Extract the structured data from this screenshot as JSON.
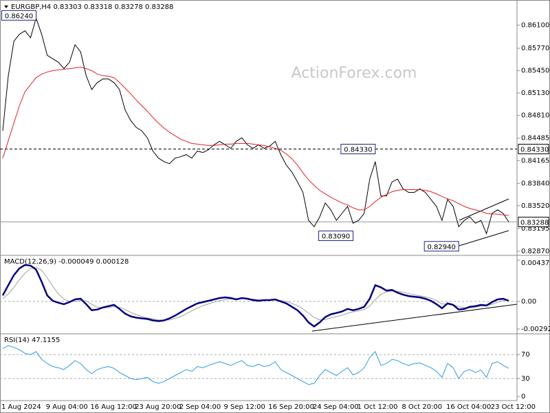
{
  "chart_data": [
    {
      "type": "line",
      "title": "EURGBP,H4  0.83303 0.83318 0.83278 0.83288",
      "watermark": "ActionForex.com",
      "ylim": [
        0.8282,
        0.8644
      ],
      "yticks": [
        {
          "value": 0.861,
          "label": "0.86100"
        },
        {
          "value": 0.8577,
          "label": "0.85770"
        },
        {
          "value": 0.8545,
          "label": "0.85450"
        },
        {
          "value": 0.8513,
          "label": "0.85130"
        },
        {
          "value": 0.8481,
          "label": "0.84810"
        },
        0.84485,
        0.84165,
        {
          "value": 0.8384,
          "label": "0.83840"
        },
        {
          "value": 0.8352,
          "label": "0.83520"
        },
        0.83195,
        {
          "value": 0.8287,
          "label": "0.82870"
        }
      ],
      "hlines": [
        {
          "value": 0.8433,
          "label": "0.84330",
          "style": "dashed"
        },
        {
          "value": 0.83288,
          "label": "0.83288",
          "style": "solid"
        }
      ],
      "annotations": [
        {
          "label": "0.86240",
          "value": 0.8624,
          "index": 6
        },
        {
          "label": "0.84330",
          "value": 0.8433,
          "index": 67
        },
        {
          "label": "0.83090",
          "value": 0.8309,
          "index": 63
        },
        {
          "label": "0.82940",
          "value": 0.8294,
          "index": 82
        }
      ],
      "series": [
        {
          "color": "#000000",
          "width": 1,
          "values": [
            0.8459,
            0.8538,
            0.8587,
            0.8597,
            0.8602,
            0.8592,
            0.862,
            0.8597,
            0.8567,
            0.8562,
            0.8557,
            0.8548,
            0.8557,
            0.8582,
            0.8572,
            0.8538,
            0.8518,
            0.8528,
            0.8533,
            0.8533,
            0.8528,
            0.8518,
            0.8489,
            0.8474,
            0.8464,
            0.8459,
            0.8449,
            0.843,
            0.842,
            0.8415,
            0.8412,
            0.842,
            0.8422,
            0.8425,
            0.842,
            0.843,
            0.8428,
            0.8432,
            0.8439,
            0.8444,
            0.8439,
            0.8434,
            0.8444,
            0.8449,
            0.8439,
            0.8434,
            0.8439,
            0.8434,
            0.8437,
            0.8444,
            0.8425,
            0.841,
            0.84,
            0.8386,
            0.8371,
            0.8331,
            0.8322,
            0.8336,
            0.8356,
            0.8346,
            0.8331,
            0.8341,
            0.8351,
            0.8327,
            0.8331,
            0.8341,
            0.839,
            0.8415,
            0.8366,
            0.8366,
            0.8386,
            0.839,
            0.8376,
            0.8371,
            0.8371,
            0.8376,
            0.8371,
            0.8361,
            0.8351,
            0.8331,
            0.8361,
            0.8351,
            0.8322,
            0.8331,
            0.8336,
            0.8327,
            0.8331,
            0.8312,
            0.8341,
            0.8346,
            0.8341,
            0.83288
          ]
        },
        {
          "color": "#e02020",
          "width": 1,
          "values": [
            0.842,
            0.8445,
            0.847,
            0.8495,
            0.8515,
            0.8525,
            0.8535,
            0.854,
            0.8543,
            0.8545,
            0.8546,
            0.8547,
            0.8548,
            0.8549,
            0.855,
            0.8548,
            0.8545,
            0.854,
            0.8538,
            0.8537,
            0.8535,
            0.8528,
            0.852,
            0.8512,
            0.8503,
            0.8495,
            0.8487,
            0.8478,
            0.847,
            0.8463,
            0.8457,
            0.8452,
            0.8447,
            0.8444,
            0.8441,
            0.844,
            0.8439,
            0.8438,
            0.8438,
            0.8439,
            0.844,
            0.844,
            0.8441,
            0.8441,
            0.8441,
            0.844,
            0.8439,
            0.8438,
            0.8436,
            0.8434,
            0.8431,
            0.8426,
            0.8419,
            0.841,
            0.8399,
            0.8389,
            0.8381,
            0.8374,
            0.8369,
            0.8364,
            0.836,
            0.8356,
            0.8353,
            0.8349,
            0.8346,
            0.8346,
            0.8351,
            0.8358,
            0.8364,
            0.8368,
            0.8372,
            0.8374,
            0.8375,
            0.8375,
            0.8375,
            0.8375,
            0.8374,
            0.8372,
            0.8369,
            0.8365,
            0.8362,
            0.8359,
            0.8355,
            0.8351,
            0.8348,
            0.8346,
            0.8344,
            0.8341,
            0.834,
            0.834,
            0.8339,
            0.8338
          ]
        }
      ]
    },
    {
      "type": "line",
      "title": "MACD(12,26,9) -0.000049 0.000128",
      "ylim": [
        -0.002922,
        0.00437
      ],
      "yticks": [
        0.00437,
        {
          "value": 0,
          "label": "0.00"
        },
        -0.002922
      ],
      "series": [
        {
          "color": "#a0a0a0",
          "width": 1,
          "values": [
            0.0003,
            0.0008,
            0.0015,
            0.0023,
            0.003,
            0.0035,
            0.00365,
            0.0033,
            0.0025,
            0.0016,
            0.0008,
            0.00025,
            0,
            0,
            0.0001,
            5e-05,
            -0.0003,
            -0.0006,
            -0.0007,
            -0.00065,
            -0.00055,
            -0.0006,
            -0.00085,
            -0.00115,
            -0.0014,
            -0.0016,
            -0.00175,
            -0.00185,
            -0.00195,
            -0.002,
            -0.00195,
            -0.0018,
            -0.0016,
            -0.0013,
            -0.001,
            -0.0007,
            -0.00045,
            -0.00025,
            -8e-05,
            8e-05,
            0.0002,
            0.00028,
            0.00028,
            0.0003,
            0.0003,
            0.00025,
            0.00018,
            0.00015,
            0.00014,
            0.00015,
            0.0001,
            0,
            -0.0002,
            -0.00045,
            -0.0008,
            -0.00125,
            -0.0017,
            -0.00195,
            -0.0019,
            -0.00175,
            -0.0016,
            -0.00145,
            -0.00125,
            -0.0011,
            -0.001,
            -0.00085,
            -0.0005,
            0.0002,
            0.00075,
            0.001,
            0.0011,
            0.00108,
            0.00098,
            0.00085,
            0.0007,
            0.0006,
            0.00048,
            0.00035,
            0.0001,
            -0.00025,
            -0.0003,
            -0.00035,
            -0.00055,
            -0.00068,
            -0.00068,
            -0.0006,
            -0.0005,
            -0.00045,
            -0.0003,
            -0.0001,
            0.0001,
            0.00013
          ]
        },
        {
          "color": "#00007f",
          "width": 2.5,
          "values": [
            0.00064,
            0.00172,
            0.00279,
            0.00351,
            0.00387,
            0.0038,
            0.00337,
            0.00208,
            0.00064,
            7e-05,
            -0.00014,
            -0.00029,
            -7e-05,
            0.00021,
            0.00029,
            -0.00029,
            -0.00093,
            -0.00086,
            -0.00064,
            -0.0005,
            -0.00036,
            -0.00079,
            -0.00129,
            -0.00158,
            -0.00172,
            -0.00179,
            -0.00186,
            -0.00201,
            -0.00208,
            -0.00201,
            -0.00179,
            -0.0015,
            -0.00115,
            -0.00079,
            -0.0005,
            -0.00021,
            -7e-05,
            7e-05,
            0.00021,
            0.00036,
            0.00043,
            0.00036,
            0.00021,
            0.00036,
            0.00029,
            0.00014,
            7e-05,
            0.00014,
            0.00014,
            0.00021,
            0,
            -0.00021,
            -0.00057,
            -0.00093,
            -0.0015,
            -0.00222,
            -0.00265,
            -0.00222,
            -0.00165,
            -0.00136,
            -0.00122,
            -0.00107,
            -0.00079,
            -0.00093,
            -0.00079,
            -0.00057,
            0.00029,
            0.00172,
            0.0015,
            0.00115,
            0.00122,
            0.00093,
            0.00072,
            0.00057,
            0.0005,
            0.00043,
            0.00029,
            7e-05,
            -0.00029,
            -0.00072,
            -0.00021,
            -0.00036,
            -0.00086,
            -0.00079,
            -0.00057,
            -0.0005,
            -0.00036,
            -0.00043,
            -7e-05,
            0.00021,
            0.00029,
            7e-05
          ]
        }
      ]
    },
    {
      "type": "line",
      "title": "RSI(14) 47.1155",
      "ylim": [
        0,
        100
      ],
      "yticks": [
        70,
        30,
        0
      ],
      "categories": [
        "1 Aug 2024",
        null,
        null,
        null,
        null,
        null,
        null,
        null,
        "9 Aug 04:00",
        null,
        null,
        null,
        null,
        null,
        null,
        null,
        "16 Aug 12:00",
        null,
        null,
        null,
        null,
        null,
        null,
        null,
        "23 Aug 20:00",
        null,
        null,
        null,
        null,
        null,
        null,
        null,
        "2 Sep 04:00",
        null,
        null,
        null,
        null,
        null,
        null,
        null,
        "9 Sep 12:00",
        null,
        null,
        null,
        null,
        null,
        null,
        null,
        "16 Sep 20:00",
        null,
        null,
        null,
        null,
        null,
        null,
        null,
        "24 Sep 04:00",
        null,
        null,
        null,
        null,
        null,
        null,
        null,
        "1 Oct 12:00",
        null,
        null,
        null,
        null,
        null,
        null,
        null,
        "8 Oct 20:00",
        null,
        null,
        null,
        null,
        null,
        null,
        null,
        "16 Oct 04:00",
        null,
        null,
        null,
        null,
        null,
        null,
        null,
        "23 Oct 12:00",
        null,
        null,
        null
      ],
      "series": [
        {
          "color": "#2b9be0",
          "width": 1,
          "values": [
            80,
            85,
            82,
            78,
            72,
            70,
            75,
            62,
            55,
            50,
            48,
            45,
            52,
            60,
            55,
            45,
            38,
            45,
            48,
            50,
            47,
            40,
            35,
            30,
            28,
            30,
            32,
            25,
            22,
            25,
            30,
            35,
            40,
            45,
            42,
            50,
            48,
            52,
            55,
            58,
            55,
            52,
            56,
            60,
            52,
            50,
            54,
            50,
            52,
            58,
            45,
            40,
            35,
            30,
            25,
            20,
            22,
            35,
            45,
            40,
            35,
            42,
            48,
            36,
            40,
            48,
            65,
            75,
            52,
            55,
            62,
            60,
            55,
            52,
            55,
            56,
            52,
            48,
            42,
            32,
            55,
            48,
            30,
            42,
            45,
            40,
            44,
            32,
            55,
            58,
            52,
            47
          ]
        }
      ]
    }
  ]
}
